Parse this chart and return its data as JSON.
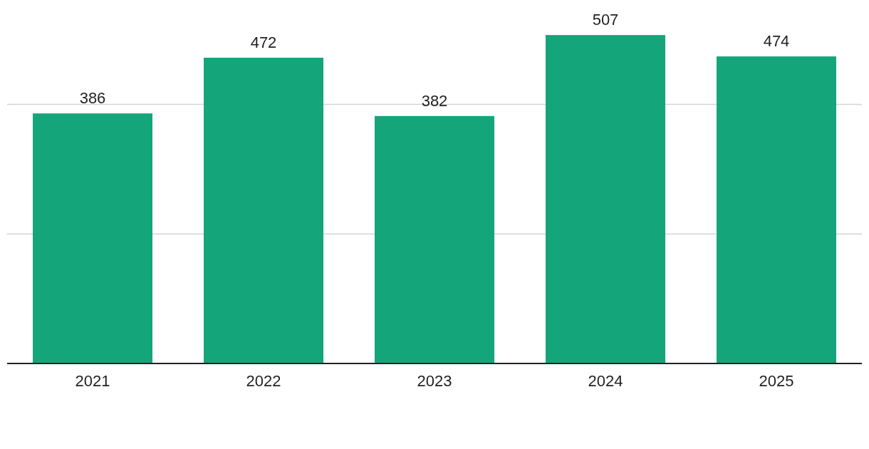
{
  "chart_data": {
    "type": "bar",
    "categories": [
      "2021",
      "2022",
      "2023",
      "2024",
      "2025"
    ],
    "values": [
      386,
      472,
      382,
      507,
      474
    ],
    "color": "#14a57a",
    "ref_lines": [
      {
        "axis": "y",
        "value": 200,
        "color": "#d4d4d4"
      },
      {
        "axis": "y",
        "value": 400,
        "color": "#d4d4d4"
      }
    ],
    "tick_labels": "x",
    "data_labels": true
  }
}
